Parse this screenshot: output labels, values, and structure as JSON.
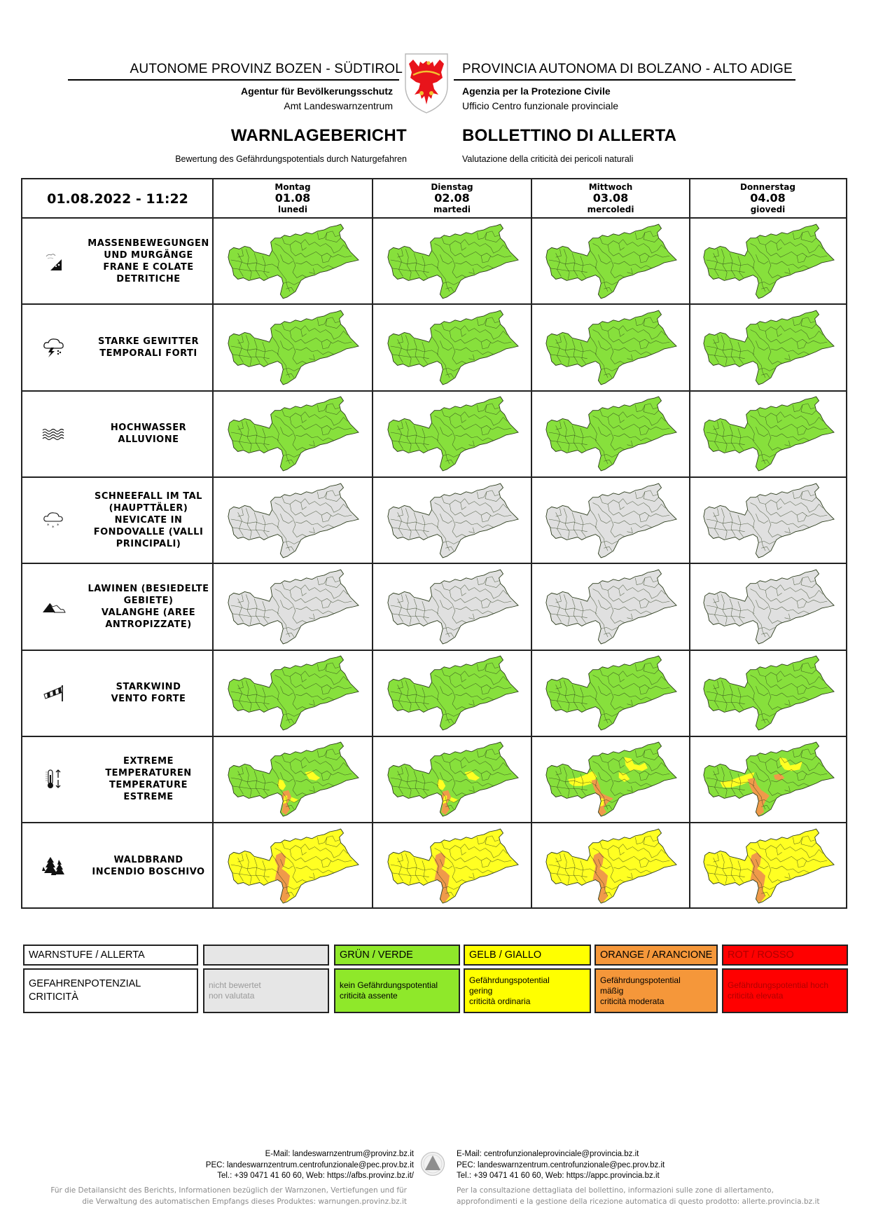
{
  "header": {
    "left_org": "AUTONOME PROVINZ BOZEN - SÜDTIROL",
    "right_org": "PROVINCIA AUTONOMA DI BOLZANO - ALTO ADIGE",
    "left_agency": "Agentur für Bevölkerungsschutz",
    "left_office": "Amt Landeswarnzentrum",
    "right_agency": "Agenzia per la Protezione Civile",
    "right_office": "Ufficio Centro funzionale provinciale",
    "title_de": "WARNLAGEBERICHT",
    "title_it": "BOLLETTINO DI ALLERTA",
    "subtitle_de": "Bewertung des Gefährdungspotentials durch Naturgefahren",
    "subtitle_it": "Valutazione della criticità dei pericoli naturali",
    "crest_icon": "south-tyrol-eagle-crest"
  },
  "table": {
    "issued": "01.08.2022 - 11:22",
    "days": [
      {
        "name_de": "Montag",
        "date": "01.08",
        "name_it": "lunedi"
      },
      {
        "name_de": "Dienstag",
        "date": "02.08",
        "name_it": "martedi"
      },
      {
        "name_de": "Mittwoch",
        "date": "03.08",
        "name_it": "mercoledi"
      },
      {
        "name_de": "Donnerstag",
        "date": "04.08",
        "name_it": "giovedi"
      }
    ],
    "hazards": [
      {
        "label": "MASSENBEWEGUNGEN UND MURGÄNGE FRANE E COLATE DETRITICHE",
        "lines": [
          "MASSENBEWEGUNGEN",
          "UND MURGÄNGE",
          "FRANE E COLATE",
          "DETRITICHE"
        ],
        "icon": "landslide-icon",
        "levels": [
          "green",
          "green",
          "green",
          "green"
        ]
      },
      {
        "label": "STARKE GEWITTER TEMPORALI FORTI",
        "lines": [
          "STARKE GEWITTER",
          "TEMPORALI FORTI"
        ],
        "icon": "thunderstorm-icon",
        "levels": [
          "green",
          "green",
          "green",
          "green"
        ]
      },
      {
        "label": "HOCHWASSER ALLUVIONE",
        "lines": [
          "HOCHWASSER",
          "ALLUVIONE"
        ],
        "icon": "flood-waves-icon",
        "levels": [
          "green",
          "green",
          "green",
          "green"
        ]
      },
      {
        "label": "SCHNEEFALL IM TAL (HAUPTTÄLER) NEVICATE IN FONDOVALLE (VALLI PRINCIPALI)",
        "lines": [
          "SCHNEEFALL IM TAL",
          "(HAUPTTÄLER)",
          "NEVICATE IN",
          "FONDOVALLE (VALLI",
          "PRINCIPALI)"
        ],
        "icon": "snowfall-cloud-icon",
        "levels": [
          "grey",
          "grey",
          "grey",
          "grey"
        ]
      },
      {
        "label": "LAWINEN (BESIEDELTE GEBIETE) VALANGHE (AREE ANTROPIZZATE)",
        "lines": [
          "LAWINEN (BESIEDELTE",
          "GEBIETE)",
          "VALANGHE (AREE",
          "ANTROPIZZATE)"
        ],
        "icon": "avalanche-mountain-icon",
        "levels": [
          "grey",
          "grey",
          "grey",
          "grey"
        ]
      },
      {
        "label": "STARKWIND VENTO FORTE",
        "lines": [
          "STARKWIND",
          "VENTO FORTE"
        ],
        "icon": "windsock-icon",
        "levels": [
          "green",
          "green",
          "green",
          "green"
        ]
      },
      {
        "label": "EXTREME TEMPERATUREN TEMPERATURE ESTREME",
        "lines": [
          "EXTREME",
          "TEMPERATUREN",
          "TEMPERATURE",
          "ESTREME"
        ],
        "icon": "thermometer-updown-icon",
        "levels": [
          "green+yellow+orange",
          "green+yellow+orange",
          "green+yellow+orange",
          "green+yellow+orange"
        ]
      },
      {
        "label": "WALDBRAND INCENDIO BOSCHIVO",
        "lines": [
          "WALDBRAND",
          "INCENDIO BOSCHIVO"
        ],
        "icon": "forest-fire-icon",
        "levels": [
          "yellow+orange",
          "yellow+orange",
          "yellow+orange",
          "yellow+orange"
        ]
      }
    ]
  },
  "legend": {
    "row1_label": "WARNSTUFE / ALLERTA",
    "row2_label_1": "GEFAHRENPOTENZIAL",
    "row2_label_2": "CRITICITÀ",
    "levels": [
      {
        "key": "grey",
        "name": "",
        "desc_1": "nicht bewertet",
        "desc_2": "non valutata",
        "desc_3": "",
        "color": "#e6e6e6",
        "text_color": "#9a9a9a"
      },
      {
        "key": "green",
        "name": "GRÜN / VERDE",
        "desc_1": "kein Gefährdungspotential",
        "desc_2": "criticità assente",
        "desc_3": "",
        "color": "#8fe82a",
        "text_color": "#000000"
      },
      {
        "key": "yellow",
        "name": "GELB / GIALLO",
        "desc_1": "Gefährdungspotential",
        "desc_2": "gering",
        "desc_3": "criticità ordinaria",
        "color": "#ffff00",
        "text_color": "#000000"
      },
      {
        "key": "orange",
        "name": "ORANGE / ARANCIONE",
        "desc_1": "Gefährdungspotential",
        "desc_2": "mäßig",
        "desc_3": "criticità moderata",
        "color": "#f5973a",
        "text_color": "#000000"
      },
      {
        "key": "red",
        "name": "ROT / ROSSO",
        "desc_1": "Gefährdungspotential hoch",
        "desc_2": "criticità elevata",
        "desc_3": "",
        "color": "#ff0000",
        "text_color": "#b00000"
      }
    ]
  },
  "map_colors": {
    "green": "#87e03c",
    "yellow": "#ffff22",
    "orange": "#ef9a4a",
    "grey": "#e0e0e0",
    "outline": "#2a3a1a"
  },
  "footer": {
    "de_email": "E-Mail: landeswarnzentrum@provinz.bz.it",
    "de_pec": "PEC: landeswarnzentrum.centrofunzionale@pec.prov.bz.it",
    "de_tel": "Tel.: +39 0471 41 60 60, Web: https://afbs.provinz.bz.it/",
    "de_note_1": "Für die Detailansicht des Berichts, Informationen bezüglich der Warnzonen, Vertiefungen und für",
    "de_note_2": "die Verwaltung des automatischen Empfangs dieses Produktes: warnungen.provinz.bz.it",
    "it_email": "E-Mail: centrofunzionaleprovinciale@provincia.bz.it",
    "it_pec": "PEC: landeswarnzentrum.centrofunzionale@pec.prov.bz.it",
    "it_tel": "Tel.: +39 0471 41 60 60, Web: https://appc.provincia.bz.it",
    "it_note_1": "Per la consultazione dettagliata del bollettino, informazioni sulle zone di allertamento,",
    "it_note_2": "approfondimenti e la gestione della ricezione automatica di questo prodotto: allerte.provincia.bz.it",
    "logo_icon": "civil-protection-triangle-logo"
  }
}
